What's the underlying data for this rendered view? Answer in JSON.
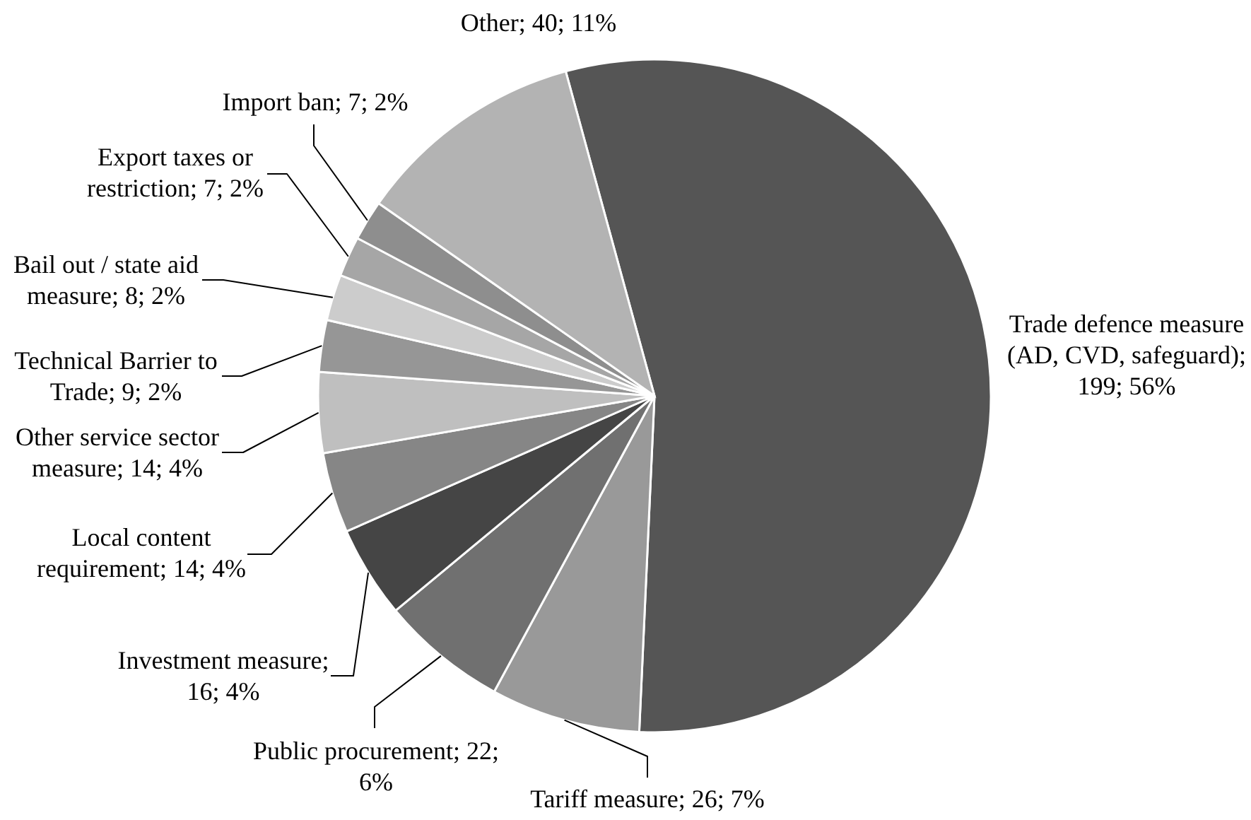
{
  "chart_data": {
    "type": "pie",
    "categories": [
      "Trade defence measure (AD, CVD, safeguard)",
      "Tariff measure",
      "Public procurement",
      "Investment measure",
      "Local content requirement",
      "Other service sector measure",
      "Technical Barrier to Trade",
      "Bail out / state aid measure",
      "Export taxes or restriction",
      "Import ban",
      "Other"
    ],
    "values": [
      199,
      26,
      22,
      16,
      14,
      14,
      9,
      8,
      7,
      7,
      40
    ],
    "value_labels": [
      "; 199; 56%",
      "; 26; 7%",
      "; 22; 6%",
      "; 16; 4%",
      "; 14; 4%",
      "; 14; 4%",
      "; 9; 2%",
      "; 8; 2%",
      "; 7; 2%",
      "; 7; 2%",
      "; 40; 11%"
    ],
    "colors": [
      "#555555",
      "#999999",
      "#707070",
      "#454545",
      "#868686",
      "#bfbfbf",
      "#969696",
      "#cccccc",
      "#a6a6a6",
      "#8e8e8e",
      "#b3b3b3"
    ]
  }
}
